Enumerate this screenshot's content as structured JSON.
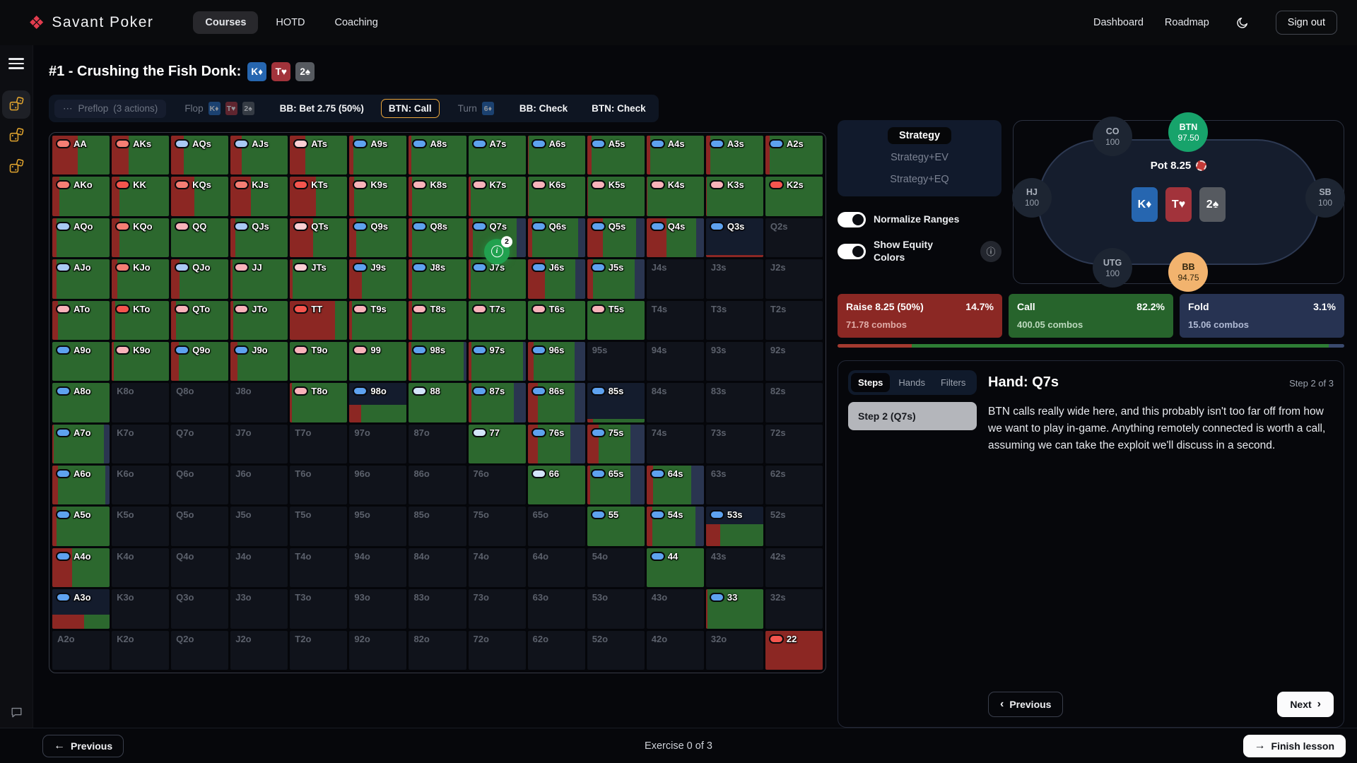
{
  "navbar": {
    "brand": "Savant Poker",
    "items": [
      "Courses",
      "HOTD",
      "Coaching"
    ],
    "active": "Courses",
    "right": [
      "Dashboard",
      "Roadmap"
    ],
    "signout": "Sign out"
  },
  "header": {
    "title": "#1 - Crushing the Fish Donk:"
  },
  "board": [
    [
      "K",
      "diamond"
    ],
    [
      "T",
      "heart"
    ],
    [
      "2",
      "spade"
    ]
  ],
  "suit_colors": {
    "diamond": "#2666b0",
    "heart": "#a2333b",
    "spade": "#565a60"
  },
  "timeline": {
    "items": [
      {
        "kind": "group",
        "icon": "⋯",
        "label": "Preflop",
        "sub": "(3 actions)"
      },
      {
        "kind": "street",
        "label": "Flop",
        "cards": [
          [
            "K",
            "diamond"
          ],
          [
            "T",
            "heart"
          ],
          [
            "2",
            "spade"
          ]
        ]
      },
      {
        "kind": "action",
        "label": "BB: Bet 2.75 (50%)"
      },
      {
        "kind": "action",
        "label": "BTN: Call",
        "highlight": true
      },
      {
        "kind": "street",
        "label": "Turn",
        "cards": [
          [
            "6",
            "diamond"
          ]
        ]
      },
      {
        "kind": "action",
        "label": "BB: Check"
      },
      {
        "kind": "action",
        "label": "BTN: Check"
      }
    ]
  },
  "controls": {
    "options": [
      "Strategy",
      "Strategy+EV",
      "Strategy+EQ"
    ],
    "active": "Strategy",
    "toggles": [
      {
        "label": "Normalize Ranges",
        "on": true
      },
      {
        "label": "Show Equity Colors",
        "on": true
      }
    ]
  },
  "table": {
    "pot": "Pot 8.25",
    "seats": [
      {
        "name": "CO",
        "stack": "100",
        "variant": "default",
        "pos": "co"
      },
      {
        "name": "BTN",
        "stack": "97.50",
        "variant": "hero",
        "pos": "btn"
      },
      {
        "name": "HJ",
        "stack": "100",
        "variant": "default",
        "pos": "hj"
      },
      {
        "name": "SB",
        "stack": "100",
        "variant": "default",
        "pos": "sb"
      },
      {
        "name": "UTG",
        "stack": "100",
        "variant": "default",
        "pos": "utg"
      },
      {
        "name": "BB",
        "stack": "94.75",
        "variant": "villain",
        "pos": "bb"
      }
    ]
  },
  "actions": [
    {
      "label": "Raise 8.25 (50%)",
      "pct": "14.7%",
      "combos": "71.78 combos",
      "bg": "#8b2824",
      "combos_color": "#dfaca7",
      "bar": "#a33a30",
      "value": 14.7
    },
    {
      "label": "Call",
      "pct": "82.2%",
      "combos": "400.05 combos",
      "bg": "#27642c",
      "combos_color": "#bdd9be",
      "bar": "#2e7d35",
      "value": 82.2
    },
    {
      "label": "Fold",
      "pct": "3.1%",
      "combos": "15.06 combos",
      "bg": "#273352",
      "combos_color": "#b0bad4",
      "bar": "#3a4a6e",
      "value": 3.1
    }
  ],
  "steps": {
    "tabs": [
      "Steps",
      "Hands",
      "Filters"
    ],
    "active_tab": "Steps",
    "items": [
      "Step 2 (Q7s)"
    ],
    "heading": "Hand: Q7s",
    "counter": "Step 2 of 3",
    "body": "BTN calls really wide here, and this probably isn't too far off from how we want to play in-game. Anything remotely connected is worth a call, assuming we can take the exploit we'll discuss in a second.",
    "prev_label": "Previous",
    "next_label": "Next"
  },
  "footer": {
    "previous": "Previous",
    "exercise": "Exercise 0 of 3",
    "finish": "Finish lesson"
  },
  "range_grid": {
    "badge_palette": {
      "red": "#f4554e",
      "salmon": "#f57e74",
      "pink": "#f8b3ba",
      "lightpink": "#fbcfd3",
      "blue": "#5ea2ef",
      "lightblue": "#a9c9f4",
      "paleblue": "#d4e5fa"
    },
    "action_palette": {
      "raise": "#8c2723",
      "call": "#2c682e",
      "fold": "#2a3550"
    },
    "marker": {
      "hand": "Q7s",
      "badge": "2"
    },
    "rows": [
      [
        [
          "AA",
          "salmon",
          45,
          0,
          100
        ],
        [
          "AKs",
          "salmon",
          30,
          0,
          100
        ],
        [
          "AQs",
          "lightblue",
          22,
          0,
          100
        ],
        [
          "AJs",
          "lightblue",
          20,
          0,
          100
        ],
        [
          "ATs",
          "lightpink",
          27,
          0,
          100
        ],
        [
          "A9s",
          "blue",
          7,
          0,
          100
        ],
        [
          "A8s",
          "blue",
          4,
          0,
          100
        ],
        [
          "A7s",
          "blue",
          0,
          0,
          100
        ],
        [
          "A6s",
          "blue",
          2,
          0,
          100
        ],
        [
          "A5s",
          "blue",
          8,
          0,
          100
        ],
        [
          "A4s",
          "blue",
          7,
          0,
          100
        ],
        [
          "A3s",
          "blue",
          8,
          0,
          100
        ],
        [
          "A2s",
          "blue",
          8,
          0,
          100
        ]
      ],
      [
        [
          "AKo",
          "salmon",
          12,
          0,
          100
        ],
        [
          "KK",
          "red",
          13,
          0,
          100
        ],
        [
          "KQs",
          "salmon",
          40,
          0,
          100
        ],
        [
          "KJs",
          "salmon",
          35,
          0,
          100
        ],
        [
          "KTs",
          "red",
          45,
          0,
          100
        ],
        [
          "K9s",
          "pink",
          8,
          0,
          100
        ],
        [
          "K8s",
          "pink",
          5,
          0,
          100
        ],
        [
          "K7s",
          "pink",
          4,
          0,
          100
        ],
        [
          "K6s",
          "pink",
          2,
          0,
          100
        ],
        [
          "K5s",
          "pink",
          2,
          0,
          100
        ],
        [
          "K4s",
          "pink",
          2,
          0,
          100
        ],
        [
          "K3s",
          "pink",
          2,
          0,
          100
        ],
        [
          "K2s",
          "red",
          0,
          0,
          100
        ]
      ],
      [
        [
          "AQo",
          "lightblue",
          8,
          0,
          100
        ],
        [
          "KQo",
          "salmon",
          13,
          0,
          100
        ],
        [
          "QQ",
          "pink",
          0,
          0,
          100
        ],
        [
          "QJs",
          "lightblue",
          8,
          0,
          100
        ],
        [
          "QTs",
          "lightpink",
          40,
          0,
          100
        ],
        [
          "Q9s",
          "blue",
          12,
          0,
          100
        ],
        [
          "Q8s",
          "blue",
          6,
          0,
          100
        ],
        [
          "Q7s",
          "blue",
          8,
          15,
          100
        ],
        [
          "Q6s",
          "blue",
          8,
          12,
          100
        ],
        [
          "Q5s",
          "blue",
          28,
          14,
          100
        ],
        [
          "Q4s",
          "blue",
          35,
          13,
          100
        ],
        [
          "Q3s",
          "blue",
          100,
          0,
          6
        ],
        [
          "Q2s"
        ]
      ],
      [
        [
          "AJo",
          "lightblue",
          8,
          0,
          100
        ],
        [
          "KJo",
          "salmon",
          10,
          0,
          100
        ],
        [
          "QJo",
          "lightblue",
          15,
          0,
          100
        ],
        [
          "JJ",
          "pink",
          4,
          0,
          100
        ],
        [
          "JTs",
          "lightpink",
          4,
          0,
          100
        ],
        [
          "J9s",
          "blue",
          22,
          0,
          100
        ],
        [
          "J8s",
          "blue",
          5,
          0,
          100
        ],
        [
          "J7s",
          "blue",
          4,
          0,
          100
        ],
        [
          "J6s",
          "blue",
          30,
          17,
          100
        ],
        [
          "J5s",
          "blue",
          10,
          17,
          100
        ],
        [
          "J4s"
        ],
        [
          "J3s"
        ],
        [
          "J2s"
        ]
      ],
      [
        [
          "ATo",
          "pink",
          10,
          0,
          100
        ],
        [
          "KTo",
          "red",
          6,
          0,
          100
        ],
        [
          "QTo",
          "pink",
          8,
          0,
          100
        ],
        [
          "JTo",
          "pink",
          5,
          0,
          100
        ],
        [
          "TT",
          "red",
          78,
          0,
          100
        ],
        [
          "T9s",
          "pink",
          4,
          0,
          100
        ],
        [
          "T8s",
          "pink",
          6,
          0,
          100
        ],
        [
          "T7s",
          "pink",
          0,
          0,
          100
        ],
        [
          "T6s",
          "pink",
          0,
          0,
          100
        ],
        [
          "T5s",
          "pink",
          0,
          0,
          100
        ],
        [
          "T4s"
        ],
        [
          "T3s"
        ],
        [
          "T2s"
        ]
      ],
      [
        [
          "A9o",
          "blue",
          0,
          0,
          100
        ],
        [
          "K9o",
          "pink",
          4,
          0,
          100
        ],
        [
          "Q9o",
          "blue",
          14,
          0,
          100
        ],
        [
          "J9o",
          "blue",
          12,
          0,
          100
        ],
        [
          "T9o",
          "pink",
          0,
          0,
          100
        ],
        [
          "99",
          "pink",
          0,
          0,
          100
        ],
        [
          "98s",
          "blue",
          4,
          4,
          100
        ],
        [
          "97s",
          "blue",
          6,
          5,
          100
        ],
        [
          "96s",
          "blue",
          10,
          18,
          100
        ],
        [
          "95s"
        ],
        [
          "94s"
        ],
        [
          "93s"
        ],
        [
          "92s"
        ]
      ],
      [
        [
          "A8o",
          "blue",
          0,
          0,
          100
        ],
        [
          "K8o"
        ],
        [
          "Q8o"
        ],
        [
          "J8o"
        ],
        [
          "T8o",
          "pink",
          3,
          0,
          100
        ],
        [
          "98o",
          "blue",
          20,
          0,
          45
        ],
        [
          "88",
          "paleblue",
          0,
          0,
          100
        ],
        [
          "87s",
          "blue",
          6,
          20,
          100
        ],
        [
          "86s",
          "blue",
          18,
          18,
          100
        ],
        [
          "85s",
          "blue",
          10,
          0,
          8
        ],
        [
          "84s"
        ],
        [
          "83s"
        ],
        [
          "82s"
        ]
      ],
      [
        [
          "A7o",
          "blue",
          3,
          10,
          100
        ],
        [
          "K7o"
        ],
        [
          "Q7o"
        ],
        [
          "J7o"
        ],
        [
          "T7o"
        ],
        [
          "97o"
        ],
        [
          "87o"
        ],
        [
          "77",
          "paleblue",
          0,
          0,
          100
        ],
        [
          "76s",
          "blue",
          18,
          25,
          100
        ],
        [
          "75s",
          "blue",
          20,
          25,
          100
        ],
        [
          "74s"
        ],
        [
          "73s"
        ],
        [
          "72s"
        ]
      ],
      [
        [
          "A6o",
          "blue",
          10,
          8,
          100
        ],
        [
          "K6o"
        ],
        [
          "Q6o"
        ],
        [
          "J6o"
        ],
        [
          "T6o"
        ],
        [
          "96o"
        ],
        [
          "86o"
        ],
        [
          "76o"
        ],
        [
          "66",
          "paleblue",
          0,
          0,
          100
        ],
        [
          "65s",
          "blue",
          5,
          25,
          100
        ],
        [
          "64s",
          "blue",
          12,
          22,
          100
        ],
        [
          "63s"
        ],
        [
          "62s"
        ]
      ],
      [
        [
          "A5o",
          "blue",
          8,
          0,
          100
        ],
        [
          "K5o"
        ],
        [
          "Q5o"
        ],
        [
          "J5o"
        ],
        [
          "T5o"
        ],
        [
          "95o"
        ],
        [
          "85o"
        ],
        [
          "75o"
        ],
        [
          "65o"
        ],
        [
          "55",
          "blue",
          0,
          0,
          100
        ],
        [
          "54s",
          "blue",
          10,
          15,
          100
        ],
        [
          "53s",
          "blue",
          25,
          0,
          55
        ],
        [
          "52s"
        ]
      ],
      [
        [
          "A4o",
          "blue",
          35,
          0,
          100
        ],
        [
          "K4o"
        ],
        [
          "Q4o"
        ],
        [
          "J4o"
        ],
        [
          "T4o"
        ],
        [
          "94o"
        ],
        [
          "84o"
        ],
        [
          "74o"
        ],
        [
          "64o"
        ],
        [
          "54o"
        ],
        [
          "44",
          "blue",
          0,
          0,
          100
        ],
        [
          "43s"
        ],
        [
          "42s"
        ]
      ],
      [
        [
          "A3o",
          "blue",
          55,
          0,
          35
        ],
        [
          "K3o"
        ],
        [
          "Q3o"
        ],
        [
          "J3o"
        ],
        [
          "T3o"
        ],
        [
          "93o"
        ],
        [
          "83o"
        ],
        [
          "73o"
        ],
        [
          "63o"
        ],
        [
          "53o"
        ],
        [
          "43o"
        ],
        [
          "33",
          "blue",
          3,
          0,
          100
        ],
        [
          "32s"
        ]
      ],
      [
        [
          "A2o"
        ],
        [
          "K2o"
        ],
        [
          "Q2o"
        ],
        [
          "J2o"
        ],
        [
          "T2o"
        ],
        [
          "92o"
        ],
        [
          "82o"
        ],
        [
          "72o"
        ],
        [
          "62o"
        ],
        [
          "52o"
        ],
        [
          "42o"
        ],
        [
          "32o"
        ],
        [
          "22",
          "red",
          100,
          0,
          100
        ]
      ]
    ]
  }
}
